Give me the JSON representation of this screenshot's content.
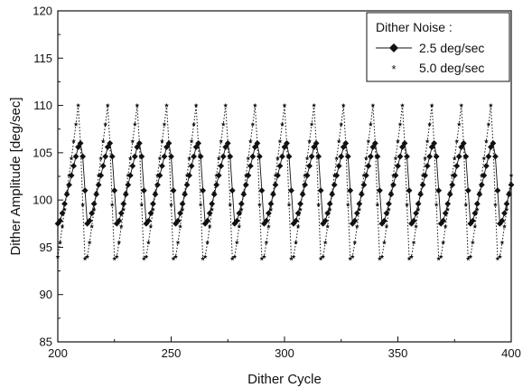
{
  "chart_data": {
    "type": "line",
    "title": "",
    "xlabel": "Dither Cycle",
    "ylabel": "Dither Amplitude [deg/sec]",
    "xlim": [
      200,
      400
    ],
    "ylim": [
      85,
      120
    ],
    "x_ticks": [
      200,
      250,
      300,
      350,
      400
    ],
    "y_ticks": [
      85,
      90,
      95,
      100,
      105,
      110,
      115,
      120
    ],
    "grid": false,
    "legend": {
      "position": "top-right",
      "title": "Dither Noise :",
      "entries": [
        "2.5 deg/sec",
        "5.0 deg/sec"
      ]
    },
    "period_cycles": 13,
    "series": [
      {
        "name": "2.5 deg/sec",
        "marker": "diamond",
        "line": "solid",
        "color": "#111111",
        "profile": [
          97.5,
          97.8,
          98.6,
          99.6,
          100.6,
          101.6,
          102.6,
          103.6,
          104.6,
          105.6,
          106.0,
          104.6,
          101.0
        ],
        "start": 200,
        "end": 400
      },
      {
        "name": "5.0 deg/sec",
        "marker": "star",
        "line": "dotted",
        "color": "#111111",
        "profile": [
          94.0,
          95.5,
          97.2,
          99.0,
          100.8,
          102.6,
          104.4,
          106.2,
          108.0,
          110.0,
          106.0,
          99.5,
          93.8
        ],
        "start": 200,
        "end": 400
      }
    ]
  }
}
